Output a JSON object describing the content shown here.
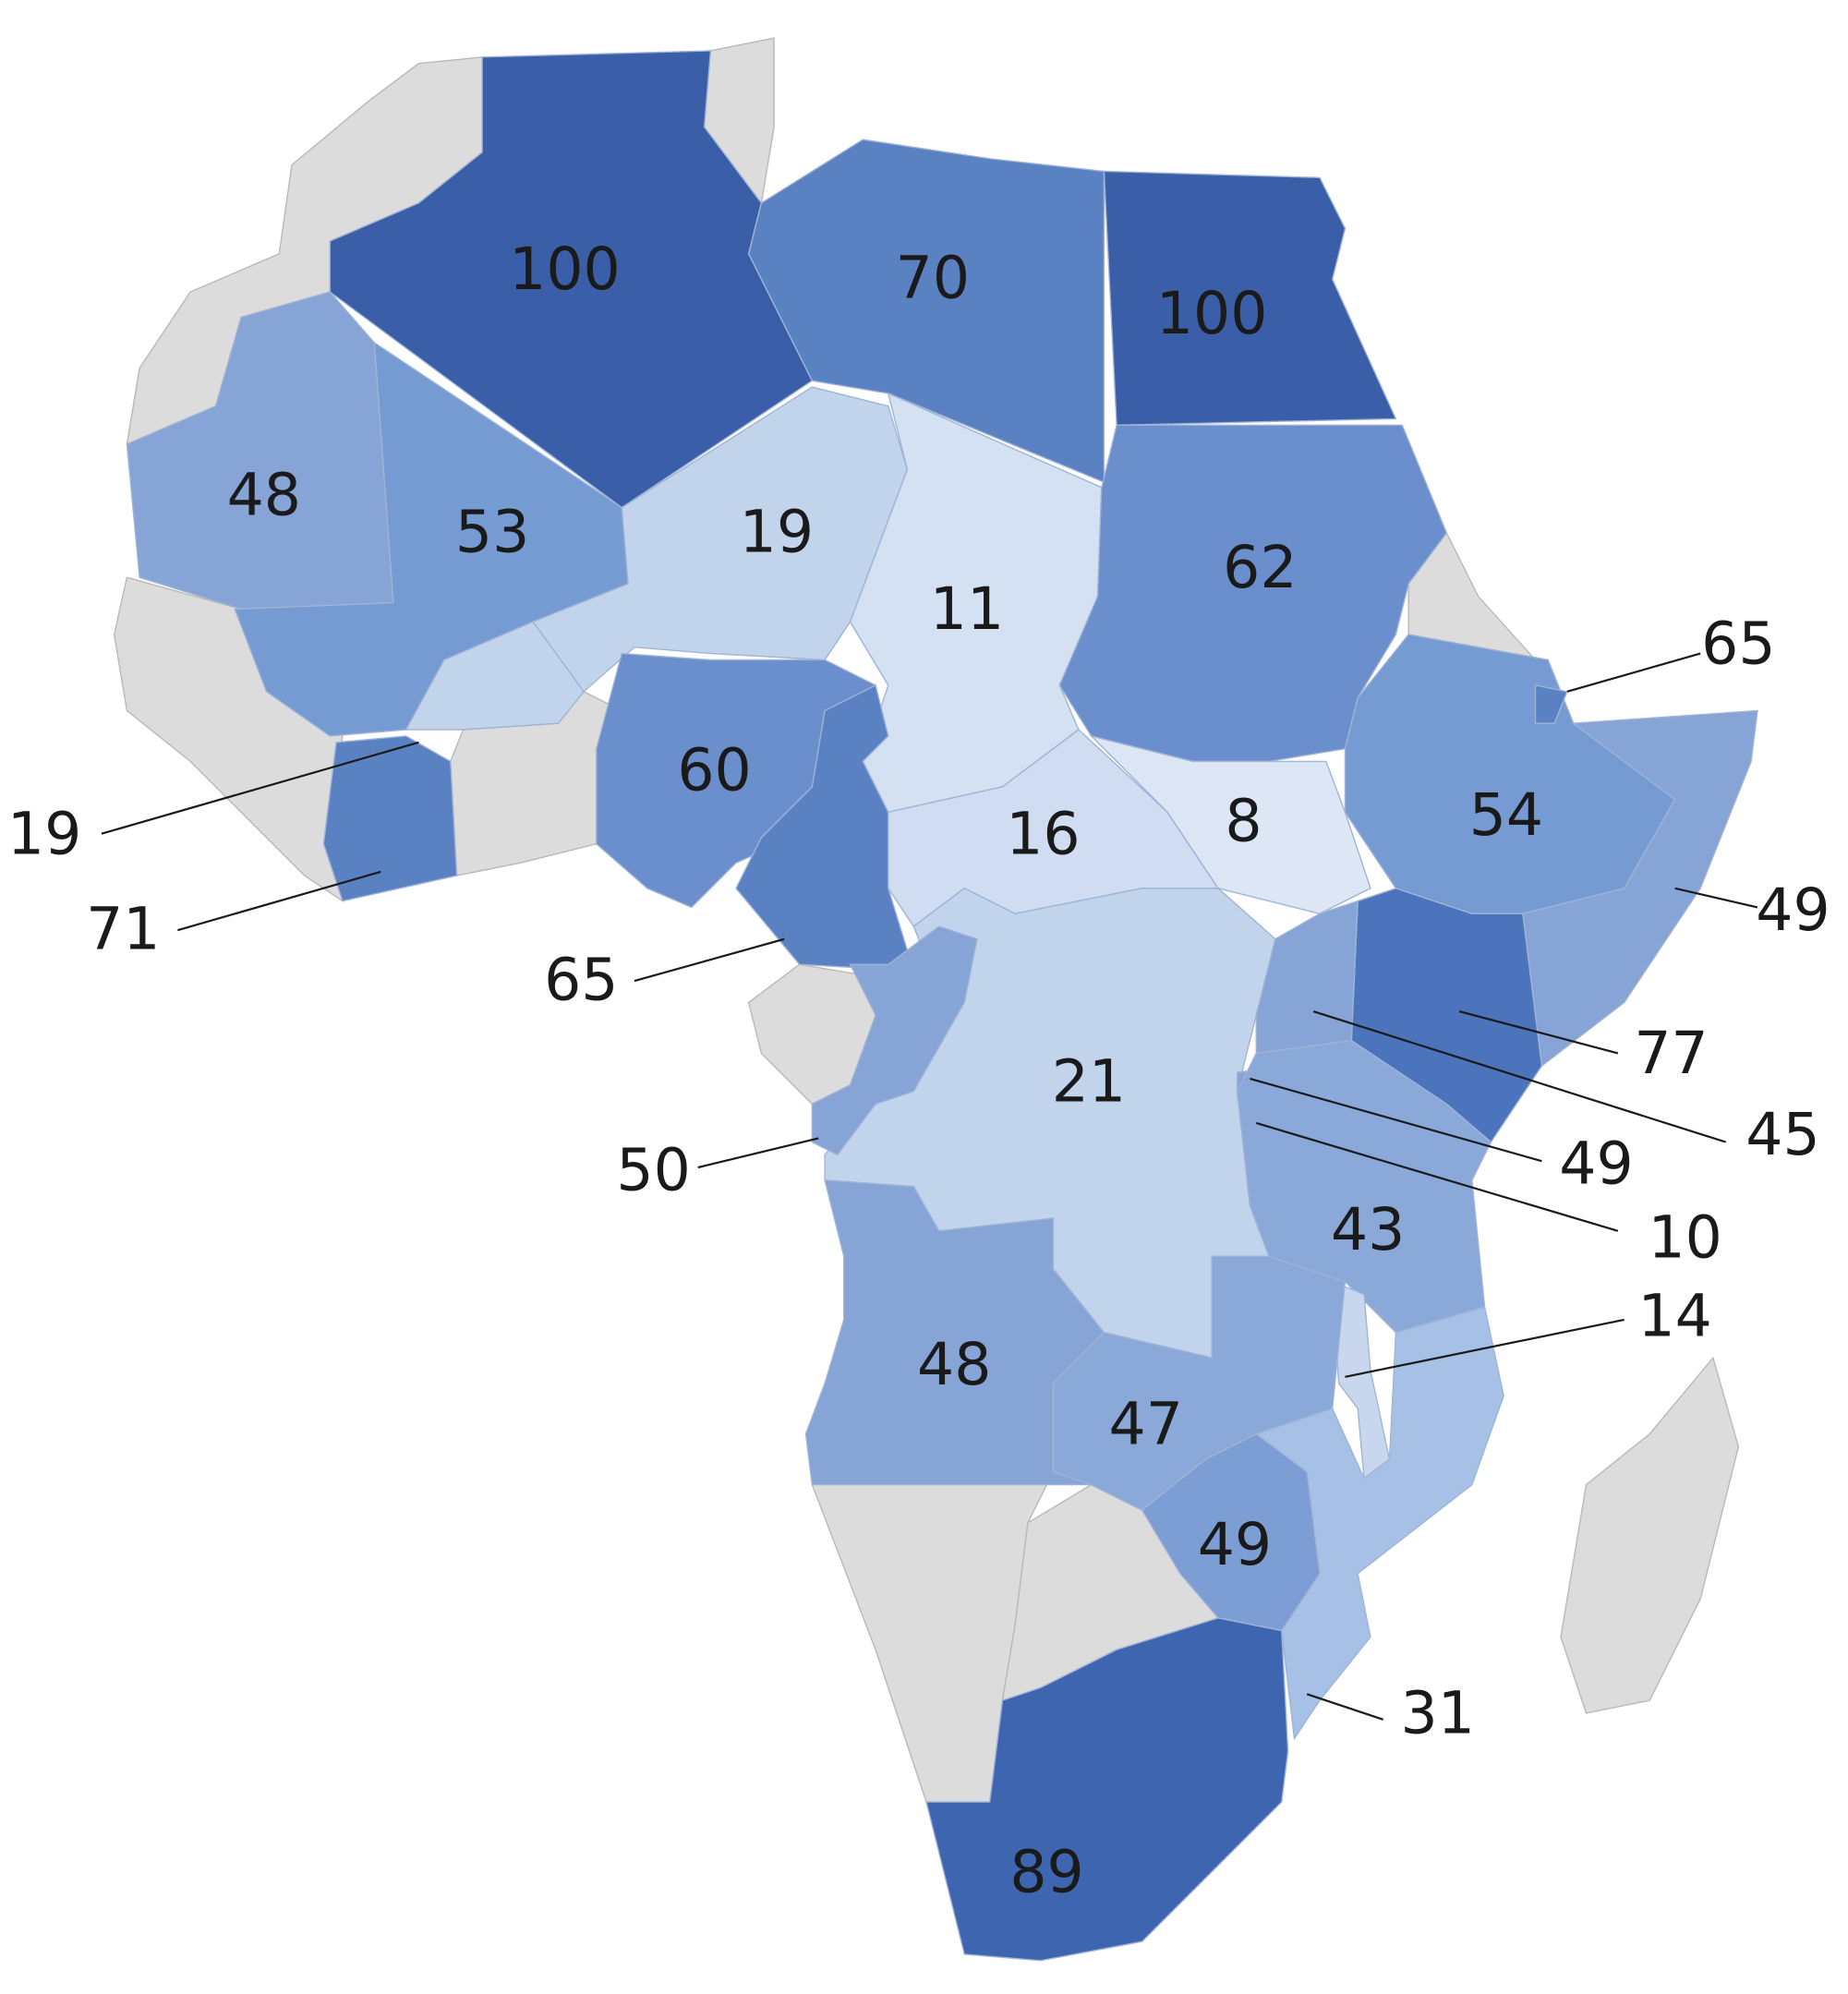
{
  "regions": [
    {
      "value": 100,
      "color": "#3a5ea8"
    },
    {
      "value": 70,
      "color": "#5a82c2"
    },
    {
      "value": 100,
      "color": "#3a5ea8"
    },
    {
      "value": 48,
      "color": "#86a5d6"
    },
    {
      "value": 53,
      "color": "#769bd3"
    },
    {
      "value": 19,
      "color": "#c2d3ec"
    },
    {
      "value": 11,
      "color": "#d3e1f3"
    },
    {
      "value": 62,
      "color": "#6b8fcc"
    },
    {
      "value": 19,
      "color": "#c2d3ec"
    },
    {
      "value": 71,
      "color": "#5a82c2"
    },
    {
      "value": 60,
      "color": "#6b8fcc"
    },
    {
      "value": 65,
      "color": "#5a82c2"
    },
    {
      "value": 16,
      "color": "#cfdcf1"
    },
    {
      "value": 8,
      "color": "#dce6f5"
    },
    {
      "value": 54,
      "color": "#769bd3"
    },
    {
      "value": 65,
      "color": "#5a82c2"
    },
    {
      "value": 49,
      "color": "#86a5d6"
    },
    {
      "value": 77,
      "color": "#4c74bd"
    },
    {
      "value": 21,
      "color": "#c2d3ec"
    },
    {
      "value": 45,
      "color": "#86a5d6"
    },
    {
      "value": 49,
      "color": "#86a5d6"
    },
    {
      "value": 10,
      "color": "#dce6f5"
    },
    {
      "value": 50,
      "color": "#86a5d6"
    },
    {
      "value": 43,
      "color": "#8aa9d9"
    },
    {
      "value": 14,
      "color": "#c8d7ee"
    },
    {
      "value": 31,
      "color": "#a6c0e6"
    },
    {
      "value": 47,
      "color": "#8aa9d9"
    },
    {
      "value": 48,
      "color": "#86a5d6"
    },
    {
      "value": 49,
      "color": "#7d9ed4"
    },
    {
      "value": 89,
      "color": "#3e66b0"
    }
  ]
}
